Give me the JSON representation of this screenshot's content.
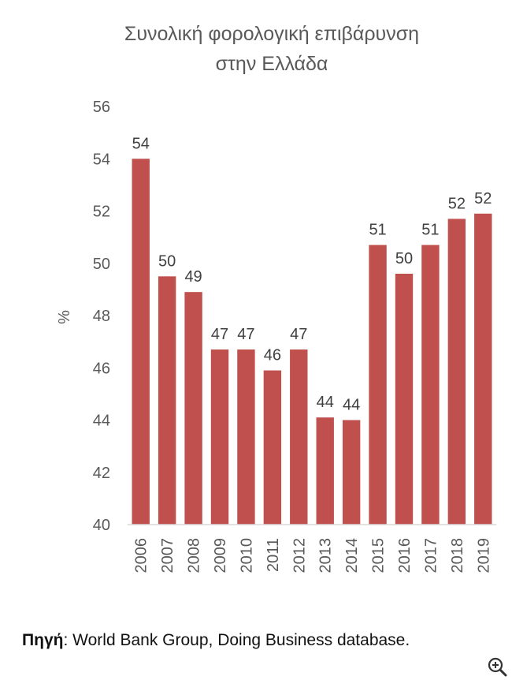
{
  "chart_data": {
    "type": "bar",
    "title_line1": "Συνολική φορολογική επιβάρυνση",
    "title_line2": "στην Ελλάδα",
    "xlabel": "",
    "ylabel": "%",
    "ylim": [
      40,
      56
    ],
    "yticks": [
      "40",
      "42",
      "44",
      "46",
      "48",
      "50",
      "52",
      "54",
      "56"
    ],
    "categories": [
      "2006",
      "2007",
      "2008",
      "2009",
      "2010",
      "2011",
      "2012",
      "2013",
      "2014",
      "2015",
      "2016",
      "2017",
      "2018",
      "2019"
    ],
    "values": [
      54.0,
      49.5,
      48.9,
      46.7,
      46.7,
      45.9,
      46.7,
      44.1,
      44.0,
      50.7,
      49.6,
      50.7,
      51.7,
      51.9
    ],
    "data_labels": [
      "54",
      "50",
      "49",
      "47",
      "47",
      "46",
      "47",
      "44",
      "44",
      "51",
      "50",
      "51",
      "52",
      "52"
    ],
    "bar_color": "#c0504d",
    "grid": false
  },
  "source": {
    "label": "Πηγή",
    "text": ": World Bank Group, Doing Business database."
  },
  "zoom_icon": "zoom-in-icon"
}
